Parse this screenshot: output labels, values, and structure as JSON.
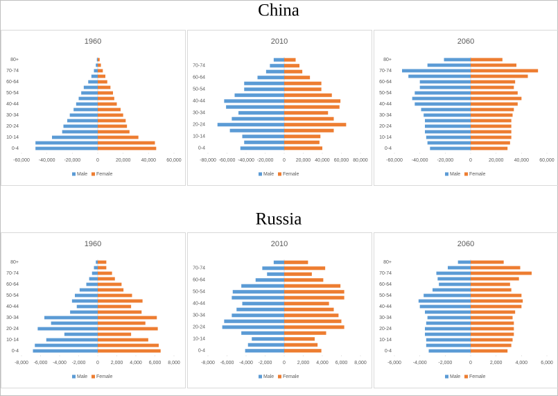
{
  "headings": [
    "China",
    "Russia"
  ],
  "chart_data": [
    {
      "type": "bar",
      "orientation": "horizontal",
      "title": "1960",
      "categories": [
        "0-4",
        null,
        "10-14",
        null,
        "20-24",
        null,
        "30-34",
        null,
        "40-44",
        null,
        "50-54",
        null,
        "60-64",
        null,
        "70-74",
        null,
        "80+"
      ],
      "series": [
        {
          "name": "Male",
          "color": "#5b9bd5",
          "values": [
            -49000,
            -49000,
            -36000,
            -28000,
            -27000,
            -24000,
            -22000,
            -19000,
            -17000,
            -15000,
            -13000,
            -11000,
            -7500,
            -5000,
            -3000,
            -1500,
            -700
          ]
        },
        {
          "name": "Female",
          "color": "#ed7d31",
          "values": [
            46000,
            45000,
            32000,
            25000,
            23000,
            22000,
            20000,
            18000,
            15000,
            13000,
            12000,
            10000,
            7500,
            6000,
            4000,
            2500,
            1500
          ]
        }
      ],
      "xlim": [
        -60000,
        60000
      ],
      "xticks": [
        {
          "value": -60000,
          "label": "-60,000"
        },
        {
          "value": -40000,
          "label": "-40,000"
        },
        {
          "value": -20000,
          "label": "-20,000"
        },
        0,
        {
          "value": 20000,
          "label": "20,000"
        },
        {
          "value": 40000,
          "label": "40,000"
        },
        {
          "value": 60000,
          "label": "60,000"
        }
      ],
      "legend": "bottom"
    },
    {
      "type": "bar",
      "orientation": "horizontal",
      "title": "2010",
      "categories": [
        "0-4",
        null,
        "10-14",
        null,
        "20-24",
        null,
        "30-34",
        null,
        "40-44",
        null,
        "50-54",
        null,
        "60-64",
        null,
        "70-74",
        null
      ],
      "series": [
        {
          "name": "Male",
          "color": "#5b9bd5",
          "values": [
            -46000,
            -42000,
            -44000,
            -57000,
            -70000,
            -55000,
            -48000,
            -61000,
            -63000,
            -52000,
            -42000,
            -42000,
            -28000,
            -19000,
            -15000,
            -11000
          ]
        },
        {
          "name": "Female",
          "color": "#ed7d31",
          "values": [
            40000,
            37000,
            38000,
            52000,
            65000,
            52000,
            46000,
            58000,
            59000,
            50000,
            39000,
            39000,
            27000,
            19000,
            16000,
            12000
          ]
        }
      ],
      "xlim": [
        -80000,
        80000
      ],
      "xticks": [
        {
          "value": -80000,
          "label": "-80,000"
        },
        {
          "value": -60000,
          "label": "-60,000"
        },
        {
          "value": -40000,
          "label": "-40,000"
        },
        {
          "value": -20000,
          "label": "-20,000"
        },
        0,
        {
          "value": 20000,
          "label": "20,000"
        },
        {
          "value": 40000,
          "label": "40,000"
        },
        {
          "value": 60000,
          "label": "60,000"
        },
        {
          "value": 80000,
          "label": "80,000"
        }
      ],
      "legend": "bottom"
    },
    {
      "type": "bar",
      "orientation": "horizontal",
      "title": "2060",
      "categories": [
        "0-4",
        null,
        "10-14",
        null,
        "20-24",
        null,
        "30-34",
        null,
        "40-44",
        null,
        "50-54",
        null,
        "60-64",
        null,
        "70-74",
        null,
        "80+"
      ],
      "series": [
        {
          "name": "Male",
          "color": "#5b9bd5",
          "values": [
            -32000,
            -34000,
            -35000,
            -36000,
            -36000,
            -36000,
            -37000,
            -39000,
            -44000,
            -46000,
            -44000,
            -40000,
            -40000,
            -49000,
            -54000,
            -34000,
            -21000
          ]
        },
        {
          "name": "Female",
          "color": "#ed7d31",
          "values": [
            29000,
            31000,
            32000,
            32000,
            32000,
            32000,
            33000,
            34000,
            37000,
            40000,
            37000,
            34000,
            35000,
            45000,
            53000,
            36000,
            25000
          ]
        }
      ],
      "xlim": [
        -60000,
        60000
      ],
      "xticks": [
        {
          "value": -60000,
          "label": "-60,000"
        },
        {
          "value": -40000,
          "label": "-40,000"
        },
        {
          "value": -20000,
          "label": "-20,000"
        },
        0,
        {
          "value": 20000,
          "label": "20,000"
        },
        {
          "value": 40000,
          "label": "40,000"
        },
        {
          "value": 60000,
          "label": "60,000"
        }
      ],
      "legend": "bottom"
    },
    {
      "type": "bar",
      "orientation": "horizontal",
      "title": "1960",
      "categories": [
        "0-4",
        null,
        "10-14",
        null,
        "20-24",
        null,
        "30-34",
        null,
        "40-44",
        null,
        "50-54",
        null,
        "60-64",
        null,
        "70-74",
        null,
        "80+"
      ],
      "series": [
        {
          "name": "Male",
          "color": "#5b9bd5",
          "values": [
            -6800,
            -6600,
            -5400,
            -3500,
            -6300,
            -4900,
            -5600,
            -2900,
            -2200,
            -2700,
            -2400,
            -1900,
            -1200,
            -900,
            -600,
            -400,
            -200
          ]
        },
        {
          "name": "Female",
          "color": "#ed7d31",
          "values": [
            6600,
            6400,
            5300,
            3500,
            6300,
            5000,
            6200,
            4600,
            3500,
            4700,
            3600,
            2700,
            2500,
            1800,
            1500,
            900,
            900
          ]
        }
      ],
      "xlim": [
        -8000,
        8000
      ],
      "xticks": [
        {
          "value": -8000,
          "label": "-8,000"
        },
        {
          "value": -6000,
          "label": "-6,000"
        },
        {
          "value": -4000,
          "label": "-4,000"
        },
        {
          "value": -2000,
          "label": "-2,000"
        },
        0,
        {
          "value": 2000,
          "label": "2,000"
        },
        {
          "value": 4000,
          "label": "4,000"
        },
        {
          "value": 6000,
          "label": "6,000"
        },
        {
          "value": 8000,
          "label": "8,000"
        }
      ],
      "legend": "bottom"
    },
    {
      "type": "bar",
      "orientation": "horizontal",
      "title": "2010",
      "categories": [
        "0-4",
        null,
        "10-14",
        null,
        "20-24",
        null,
        "30-34",
        null,
        "40-44",
        null,
        "50-54",
        null,
        "60-64",
        null,
        "70-74",
        null
      ],
      "series": [
        {
          "name": "Male",
          "color": "#5b9bd5",
          "values": [
            -4100,
            -3800,
            -3400,
            -4500,
            -6500,
            -6300,
            -5500,
            -5000,
            -4400,
            -5500,
            -5400,
            -4500,
            -3000,
            -1800,
            -2300,
            -1100
          ]
        },
        {
          "name": "Female",
          "color": "#ed7d31",
          "values": [
            3900,
            3500,
            3200,
            4400,
            6300,
            6000,
            5700,
            5200,
            4700,
            6300,
            6300,
            5900,
            4100,
            2900,
            4300,
            2500
          ]
        }
      ],
      "xlim": [
        -8000,
        8000
      ],
      "xticks": [
        {
          "value": -8000,
          "label": "-8,000"
        },
        {
          "value": -6000,
          "label": "-6,000"
        },
        {
          "value": -4000,
          "label": "-4,000"
        },
        {
          "value": -2000,
          "label": "-2,000"
        },
        0,
        {
          "value": 2000,
          "label": "2,000"
        },
        {
          "value": 4000,
          "label": "4,000"
        },
        {
          "value": 6000,
          "label": "6,000"
        },
        {
          "value": 8000,
          "label": "8,000"
        }
      ],
      "legend": "bottom"
    },
    {
      "type": "bar",
      "orientation": "horizontal",
      "title": "2060",
      "categories": [
        "0-4",
        null,
        "10-14",
        null,
        "20-24",
        null,
        "30-34",
        null,
        "40-44",
        null,
        "50-54",
        null,
        "60-64",
        null,
        "70-74",
        null,
        "80+"
      ],
      "series": [
        {
          "name": "Male",
          "color": "#5b9bd5",
          "values": [
            -3300,
            -3500,
            -3500,
            -3600,
            -3600,
            -3500,
            -3400,
            -3600,
            -4000,
            -4100,
            -3700,
            -3000,
            -2500,
            -2600,
            -2700,
            -1800,
            -1000
          ]
        },
        {
          "name": "Female",
          "color": "#ed7d31",
          "values": [
            2900,
            3200,
            3300,
            3400,
            3400,
            3400,
            3300,
            3500,
            4000,
            4100,
            4000,
            3200,
            3100,
            3800,
            4800,
            3900,
            2600
          ]
        }
      ],
      "xlim": [
        -6000,
        6000
      ],
      "xticks": [
        {
          "value": -6000,
          "label": "-6,000"
        },
        {
          "value": -4000,
          "label": "-4,000"
        },
        {
          "value": -2000,
          "label": "-2,000"
        },
        0,
        {
          "value": 2000,
          "label": "2,000"
        },
        {
          "value": 4000,
          "label": "4,000"
        },
        {
          "value": 6000,
          "label": "6,000"
        }
      ],
      "legend": "bottom"
    }
  ]
}
